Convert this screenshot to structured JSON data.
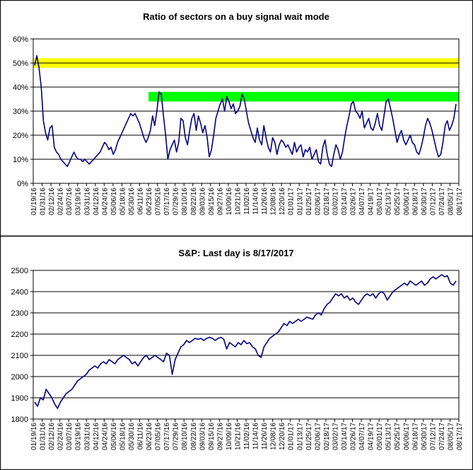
{
  "chart_data": [
    {
      "type": "line",
      "title": "Ratio of sectors on a buy signal wait mode",
      "y_ticks": [
        "60%",
        "50%",
        "40%",
        "30%",
        "20%",
        "10%",
        "0%"
      ],
      "ylim": [
        0,
        0.6
      ],
      "x_ticks": [
        "01/19/16",
        "01/31/16",
        "02/12/16",
        "02/24/16",
        "03/07/16",
        "03/19/16",
        "03/31/16",
        "04/12/16",
        "04/24/16",
        "05/06/16",
        "05/18/16",
        "05/30/16",
        "06/11/16",
        "06/23/16",
        "07/05/16",
        "07/17/16",
        "07/29/16",
        "08/10/16",
        "08/22/16",
        "09/03/16",
        "09/15/16",
        "09/27/16",
        "10/09/16",
        "10/21/16",
        "11/02/16",
        "11/14/16",
        "11/26/16",
        "12/08/16",
        "12/20/16",
        "01/01/17",
        "01/13/17",
        "01/25/17",
        "02/06/17",
        "02/18/17",
        "03/02/17",
        "03/14/17",
        "03/26/17",
        "04/07/17",
        "04/19/17",
        "05/01/17",
        "05/13/17",
        "05/25/17",
        "06/06/17",
        "06/18/17",
        "06/30/17",
        "07/12/17",
        "07/24/17",
        "08/05/17",
        "08/17/17"
      ],
      "grid": true,
      "highlight_bands": [
        {
          "color": "#ffff00",
          "from": 0.48,
          "to": 0.52,
          "x_start": "01/19/16",
          "x_end": "08/17/17"
        },
        {
          "color": "#00ff00",
          "from": 0.34,
          "to": 0.38,
          "x_start": "06/23/16",
          "x_end": "08/17/17"
        }
      ],
      "series": [
        {
          "color": "#000080",
          "values": [
            0.49,
            0.53,
            0.48,
            0.4,
            0.26,
            0.21,
            0.18,
            0.23,
            0.24,
            0.15,
            0.13,
            0.12,
            0.1,
            0.09,
            0.08,
            0.07,
            0.09,
            0.11,
            0.13,
            0.11,
            0.1,
            0.1,
            0.09,
            0.1,
            0.09,
            0.08,
            0.09,
            0.1,
            0.11,
            0.12,
            0.13,
            0.15,
            0.17,
            0.16,
            0.14,
            0.15,
            0.12,
            0.14,
            0.17,
            0.19,
            0.21,
            0.23,
            0.25,
            0.27,
            0.29,
            0.28,
            0.29,
            0.27,
            0.25,
            0.22,
            0.19,
            0.17,
            0.19,
            0.22,
            0.28,
            0.24,
            0.3,
            0.38,
            0.37,
            0.28,
            0.2,
            0.1,
            0.14,
            0.16,
            0.18,
            0.13,
            0.17,
            0.27,
            0.26,
            0.19,
            0.16,
            0.22,
            0.27,
            0.29,
            0.22,
            0.28,
            0.25,
            0.21,
            0.24,
            0.19,
            0.11,
            0.14,
            0.2,
            0.27,
            0.3,
            0.33,
            0.35,
            0.3,
            0.36,
            0.34,
            0.31,
            0.33,
            0.29,
            0.3,
            0.32,
            0.37,
            0.35,
            0.3,
            0.25,
            0.22,
            0.19,
            0.17,
            0.23,
            0.18,
            0.16,
            0.24,
            0.19,
            0.15,
            0.13,
            0.19,
            0.17,
            0.12,
            0.16,
            0.18,
            0.17,
            0.15,
            0.16,
            0.14,
            0.12,
            0.17,
            0.13,
            0.15,
            0.16,
            0.11,
            0.14,
            0.13,
            0.15,
            0.1,
            0.12,
            0.14,
            0.09,
            0.08,
            0.15,
            0.18,
            0.12,
            0.08,
            0.07,
            0.12,
            0.16,
            0.14,
            0.1,
            0.13,
            0.19,
            0.24,
            0.28,
            0.33,
            0.34,
            0.3,
            0.29,
            0.27,
            0.3,
            0.23,
            0.25,
            0.27,
            0.23,
            0.22,
            0.25,
            0.29,
            0.24,
            0.22,
            0.28,
            0.34,
            0.35,
            0.31,
            0.27,
            0.22,
            0.17,
            0.2,
            0.22,
            0.18,
            0.16,
            0.18,
            0.2,
            0.17,
            0.16,
            0.13,
            0.12,
            0.15,
            0.19,
            0.24,
            0.27,
            0.25,
            0.22,
            0.18,
            0.14,
            0.11,
            0.12,
            0.17,
            0.24,
            0.26,
            0.22,
            0.24,
            0.27,
            0.33
          ]
        }
      ]
    },
    {
      "type": "line",
      "title": "S&P: Last day is 8/17/2017",
      "y_ticks": [
        "2500",
        "2400",
        "2300",
        "2200",
        "2100",
        "2000",
        "1900",
        "1800"
      ],
      "ylim": [
        1800,
        2500
      ],
      "x_ticks": [
        "01/19/16",
        "01/31/16",
        "02/12/16",
        "02/24/16",
        "03/07/16",
        "03/19/16",
        "03/31/16",
        "04/12/16",
        "04/24/16",
        "05/06/16",
        "05/18/16",
        "05/30/16",
        "06/11/16",
        "06/23/16",
        "07/05/16",
        "07/17/16",
        "07/29/16",
        "08/10/16",
        "08/22/16",
        "09/03/16",
        "09/15/16",
        "09/27/16",
        "10/09/16",
        "10/21/16",
        "11/02/16",
        "11/14/16",
        "11/26/16",
        "12/08/16",
        "12/20/16",
        "01/01/17",
        "01/13/17",
        "01/25/17",
        "02/06/17",
        "02/18/17",
        "03/02/17",
        "03/14/17",
        "03/26/17",
        "04/07/17",
        "04/19/17",
        "05/01/17",
        "05/13/17",
        "05/25/17",
        "06/06/17",
        "06/18/17",
        "06/30/17",
        "07/12/17",
        "07/24/17",
        "08/05/17",
        "08/17/17"
      ],
      "grid": true,
      "series": [
        {
          "color": "#000080",
          "values": [
            1880,
            1860,
            1900,
            1890,
            1940,
            1920,
            1900,
            1870,
            1850,
            1880,
            1900,
            1920,
            1930,
            1940,
            1960,
            1980,
            1990,
            2000,
            2010,
            2030,
            2040,
            2050,
            2040,
            2060,
            2070,
            2060,
            2080,
            2070,
            2060,
            2080,
            2090,
            2100,
            2090,
            2080,
            2060,
            2070,
            2050,
            2070,
            2090,
            2100,
            2080,
            2090,
            2100,
            2090,
            2080,
            2070,
            2110,
            2100,
            2010,
            2080,
            2110,
            2140,
            2150,
            2170,
            2160,
            2170,
            2180,
            2175,
            2180,
            2170,
            2180,
            2185,
            2180,
            2170,
            2180,
            2185,
            2175,
            2130,
            2160,
            2150,
            2140,
            2160,
            2150,
            2170,
            2155,
            2160,
            2140,
            2130,
            2100,
            2090,
            2140,
            2160,
            2180,
            2190,
            2200,
            2210,
            2230,
            2250,
            2240,
            2260,
            2250,
            2260,
            2270,
            2260,
            2270,
            2280,
            2275,
            2270,
            2290,
            2300,
            2290,
            2320,
            2340,
            2350,
            2370,
            2390,
            2380,
            2390,
            2370,
            2380,
            2360,
            2370,
            2350,
            2340,
            2360,
            2380,
            2390,
            2380,
            2390,
            2370,
            2390,
            2400,
            2390,
            2360,
            2380,
            2400,
            2410,
            2420,
            2430,
            2440,
            2430,
            2450,
            2440,
            2430,
            2440,
            2450,
            2430,
            2440,
            2460,
            2470,
            2460,
            2470,
            2480,
            2470,
            2475,
            2440,
            2430,
            2450
          ]
        }
      ]
    }
  ]
}
